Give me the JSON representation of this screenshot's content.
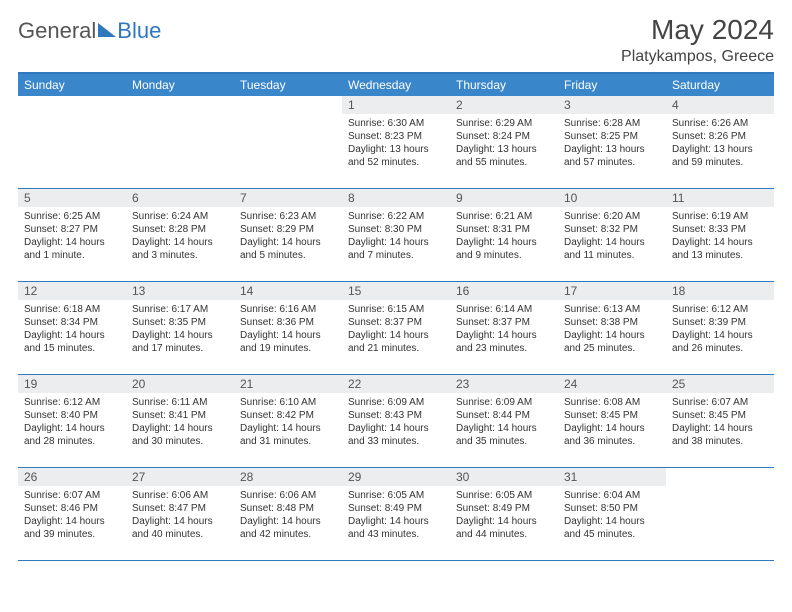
{
  "brand": {
    "text1": "General",
    "text2": "Blue"
  },
  "title": "May 2024",
  "subtitle": "Platykampos, Greece",
  "colors": {
    "header_bg": "#3a86ca",
    "header_text": "#ffffff",
    "rule": "#2f78bd",
    "daynum_bg": "#ecedef",
    "body_text": "#333333"
  },
  "typography": {
    "title_fontsize": 28,
    "subtitle_fontsize": 16,
    "dayhead_fontsize": 12,
    "daynum_fontsize": 12,
    "body_fontsize": 10
  },
  "day_headers": [
    "Sunday",
    "Monday",
    "Tuesday",
    "Wednesday",
    "Thursday",
    "Friday",
    "Saturday"
  ],
  "weeks": [
    [
      {
        "blank": true
      },
      {
        "blank": true
      },
      {
        "blank": true
      },
      {
        "num": "1",
        "sunrise": "Sunrise: 6:30 AM",
        "sunset": "Sunset: 8:23 PM",
        "daylight1": "Daylight: 13 hours",
        "daylight2": "and 52 minutes."
      },
      {
        "num": "2",
        "sunrise": "Sunrise: 6:29 AM",
        "sunset": "Sunset: 8:24 PM",
        "daylight1": "Daylight: 13 hours",
        "daylight2": "and 55 minutes."
      },
      {
        "num": "3",
        "sunrise": "Sunrise: 6:28 AM",
        "sunset": "Sunset: 8:25 PM",
        "daylight1": "Daylight: 13 hours",
        "daylight2": "and 57 minutes."
      },
      {
        "num": "4",
        "sunrise": "Sunrise: 6:26 AM",
        "sunset": "Sunset: 8:26 PM",
        "daylight1": "Daylight: 13 hours",
        "daylight2": "and 59 minutes."
      }
    ],
    [
      {
        "num": "5",
        "sunrise": "Sunrise: 6:25 AM",
        "sunset": "Sunset: 8:27 PM",
        "daylight1": "Daylight: 14 hours",
        "daylight2": "and 1 minute."
      },
      {
        "num": "6",
        "sunrise": "Sunrise: 6:24 AM",
        "sunset": "Sunset: 8:28 PM",
        "daylight1": "Daylight: 14 hours",
        "daylight2": "and 3 minutes."
      },
      {
        "num": "7",
        "sunrise": "Sunrise: 6:23 AM",
        "sunset": "Sunset: 8:29 PM",
        "daylight1": "Daylight: 14 hours",
        "daylight2": "and 5 minutes."
      },
      {
        "num": "8",
        "sunrise": "Sunrise: 6:22 AM",
        "sunset": "Sunset: 8:30 PM",
        "daylight1": "Daylight: 14 hours",
        "daylight2": "and 7 minutes."
      },
      {
        "num": "9",
        "sunrise": "Sunrise: 6:21 AM",
        "sunset": "Sunset: 8:31 PM",
        "daylight1": "Daylight: 14 hours",
        "daylight2": "and 9 minutes."
      },
      {
        "num": "10",
        "sunrise": "Sunrise: 6:20 AM",
        "sunset": "Sunset: 8:32 PM",
        "daylight1": "Daylight: 14 hours",
        "daylight2": "and 11 minutes."
      },
      {
        "num": "11",
        "sunrise": "Sunrise: 6:19 AM",
        "sunset": "Sunset: 8:33 PM",
        "daylight1": "Daylight: 14 hours",
        "daylight2": "and 13 minutes."
      }
    ],
    [
      {
        "num": "12",
        "sunrise": "Sunrise: 6:18 AM",
        "sunset": "Sunset: 8:34 PM",
        "daylight1": "Daylight: 14 hours",
        "daylight2": "and 15 minutes."
      },
      {
        "num": "13",
        "sunrise": "Sunrise: 6:17 AM",
        "sunset": "Sunset: 8:35 PM",
        "daylight1": "Daylight: 14 hours",
        "daylight2": "and 17 minutes."
      },
      {
        "num": "14",
        "sunrise": "Sunrise: 6:16 AM",
        "sunset": "Sunset: 8:36 PM",
        "daylight1": "Daylight: 14 hours",
        "daylight2": "and 19 minutes."
      },
      {
        "num": "15",
        "sunrise": "Sunrise: 6:15 AM",
        "sunset": "Sunset: 8:37 PM",
        "daylight1": "Daylight: 14 hours",
        "daylight2": "and 21 minutes."
      },
      {
        "num": "16",
        "sunrise": "Sunrise: 6:14 AM",
        "sunset": "Sunset: 8:37 PM",
        "daylight1": "Daylight: 14 hours",
        "daylight2": "and 23 minutes."
      },
      {
        "num": "17",
        "sunrise": "Sunrise: 6:13 AM",
        "sunset": "Sunset: 8:38 PM",
        "daylight1": "Daylight: 14 hours",
        "daylight2": "and 25 minutes."
      },
      {
        "num": "18",
        "sunrise": "Sunrise: 6:12 AM",
        "sunset": "Sunset: 8:39 PM",
        "daylight1": "Daylight: 14 hours",
        "daylight2": "and 26 minutes."
      }
    ],
    [
      {
        "num": "19",
        "sunrise": "Sunrise: 6:12 AM",
        "sunset": "Sunset: 8:40 PM",
        "daylight1": "Daylight: 14 hours",
        "daylight2": "and 28 minutes."
      },
      {
        "num": "20",
        "sunrise": "Sunrise: 6:11 AM",
        "sunset": "Sunset: 8:41 PM",
        "daylight1": "Daylight: 14 hours",
        "daylight2": "and 30 minutes."
      },
      {
        "num": "21",
        "sunrise": "Sunrise: 6:10 AM",
        "sunset": "Sunset: 8:42 PM",
        "daylight1": "Daylight: 14 hours",
        "daylight2": "and 31 minutes."
      },
      {
        "num": "22",
        "sunrise": "Sunrise: 6:09 AM",
        "sunset": "Sunset: 8:43 PM",
        "daylight1": "Daylight: 14 hours",
        "daylight2": "and 33 minutes."
      },
      {
        "num": "23",
        "sunrise": "Sunrise: 6:09 AM",
        "sunset": "Sunset: 8:44 PM",
        "daylight1": "Daylight: 14 hours",
        "daylight2": "and 35 minutes."
      },
      {
        "num": "24",
        "sunrise": "Sunrise: 6:08 AM",
        "sunset": "Sunset: 8:45 PM",
        "daylight1": "Daylight: 14 hours",
        "daylight2": "and 36 minutes."
      },
      {
        "num": "25",
        "sunrise": "Sunrise: 6:07 AM",
        "sunset": "Sunset: 8:45 PM",
        "daylight1": "Daylight: 14 hours",
        "daylight2": "and 38 minutes."
      }
    ],
    [
      {
        "num": "26",
        "sunrise": "Sunrise: 6:07 AM",
        "sunset": "Sunset: 8:46 PM",
        "daylight1": "Daylight: 14 hours",
        "daylight2": "and 39 minutes."
      },
      {
        "num": "27",
        "sunrise": "Sunrise: 6:06 AM",
        "sunset": "Sunset: 8:47 PM",
        "daylight1": "Daylight: 14 hours",
        "daylight2": "and 40 minutes."
      },
      {
        "num": "28",
        "sunrise": "Sunrise: 6:06 AM",
        "sunset": "Sunset: 8:48 PM",
        "daylight1": "Daylight: 14 hours",
        "daylight2": "and 42 minutes."
      },
      {
        "num": "29",
        "sunrise": "Sunrise: 6:05 AM",
        "sunset": "Sunset: 8:49 PM",
        "daylight1": "Daylight: 14 hours",
        "daylight2": "and 43 minutes."
      },
      {
        "num": "30",
        "sunrise": "Sunrise: 6:05 AM",
        "sunset": "Sunset: 8:49 PM",
        "daylight1": "Daylight: 14 hours",
        "daylight2": "and 44 minutes."
      },
      {
        "num": "31",
        "sunrise": "Sunrise: 6:04 AM",
        "sunset": "Sunset: 8:50 PM",
        "daylight1": "Daylight: 14 hours",
        "daylight2": "and 45 minutes."
      },
      {
        "blank": true
      }
    ]
  ]
}
